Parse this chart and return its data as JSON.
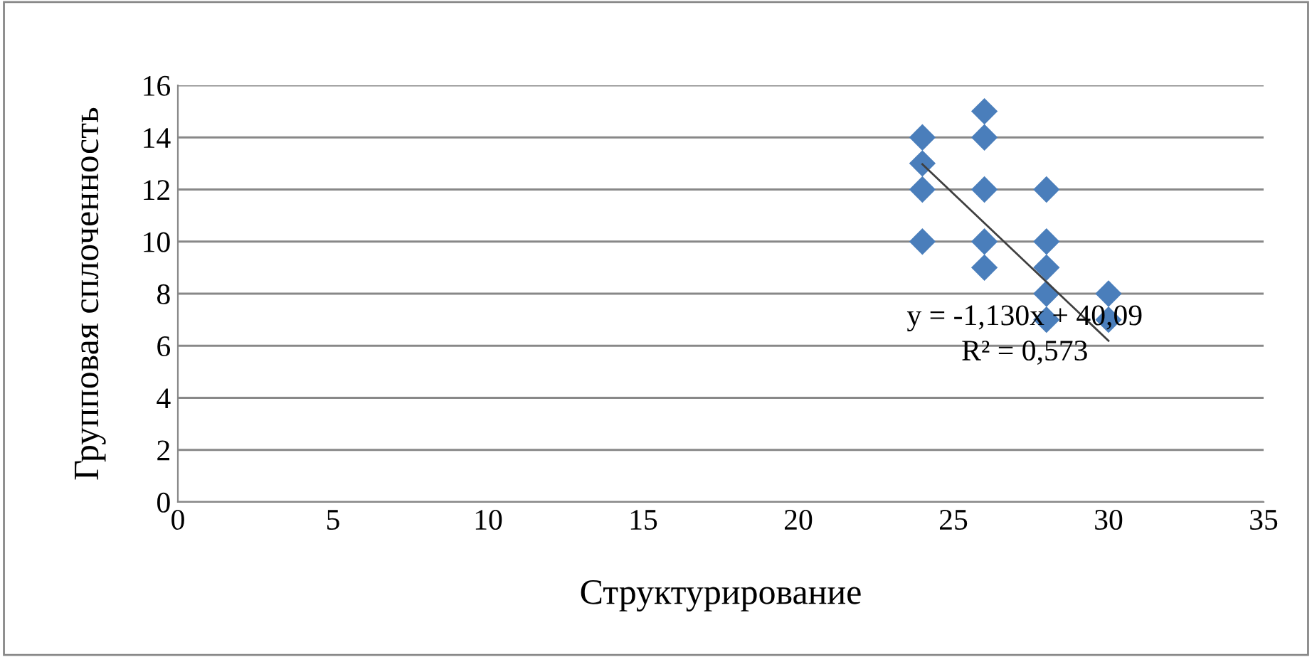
{
  "chart_data": {
    "type": "scatter",
    "xlabel": "Структурирование",
    "ylabel": "Групповая сплоченность",
    "xlim": [
      0,
      35
    ],
    "xticks": [
      0,
      5,
      10,
      15,
      20,
      25,
      30,
      35
    ],
    "ylim": [
      0,
      16
    ],
    "yticks": [
      0,
      2,
      4,
      6,
      8,
      10,
      12,
      14,
      16
    ],
    "grid": "y",
    "series": [
      {
        "marker": "diamond",
        "color": "#4a7ebb",
        "x": [
          24,
          24,
          24,
          24,
          26,
          26,
          26,
          26,
          26,
          28,
          28,
          28,
          28,
          28,
          30,
          30
        ],
        "values": [
          14,
          13,
          12,
          10,
          15,
          14,
          12,
          10,
          9,
          12,
          10,
          9,
          8,
          7,
          8,
          7
        ]
      },
      {
        "type": "line",
        "marker": "none",
        "color": "#404040",
        "x": [
          24,
          30
        ],
        "values": [
          12.97,
          6.19
        ]
      }
    ],
    "annotations": [
      "y = -1,130x + 40,09",
      "R² = 0,573"
    ]
  }
}
